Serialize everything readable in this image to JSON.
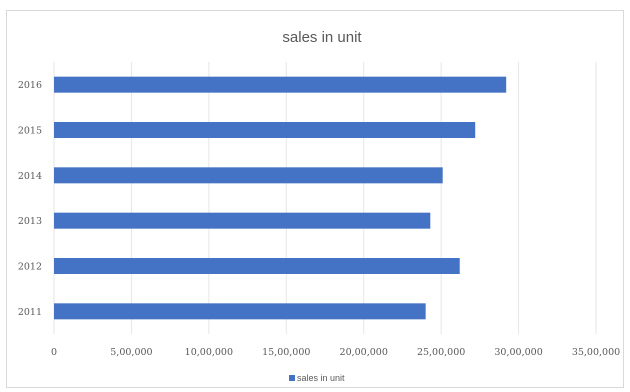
{
  "chart_data": {
    "type": "bar",
    "orientation": "horizontal",
    "title": "sales in unit",
    "categories": [
      "2011",
      "2012",
      "2013",
      "2014",
      "2015",
      "2016"
    ],
    "series": [
      {
        "name": "sales in unit",
        "values": [
          2400000,
          2620000,
          2430000,
          2510000,
          2720000,
          2920000
        ]
      }
    ],
    "xlim": [
      0,
      3500000
    ],
    "x_ticks": [
      0,
      500000,
      1000000,
      1500000,
      2000000,
      2500000,
      3000000,
      3500000
    ],
    "x_tick_labels": [
      "0",
      "5,00,000",
      "10,00,000",
      "15,00,000",
      "20,00,000",
      "25,00,000",
      "30,00,000",
      "35,00,000"
    ],
    "grid": "vertical",
    "legend_position": "bottom",
    "bar_color": "#4472C4"
  }
}
